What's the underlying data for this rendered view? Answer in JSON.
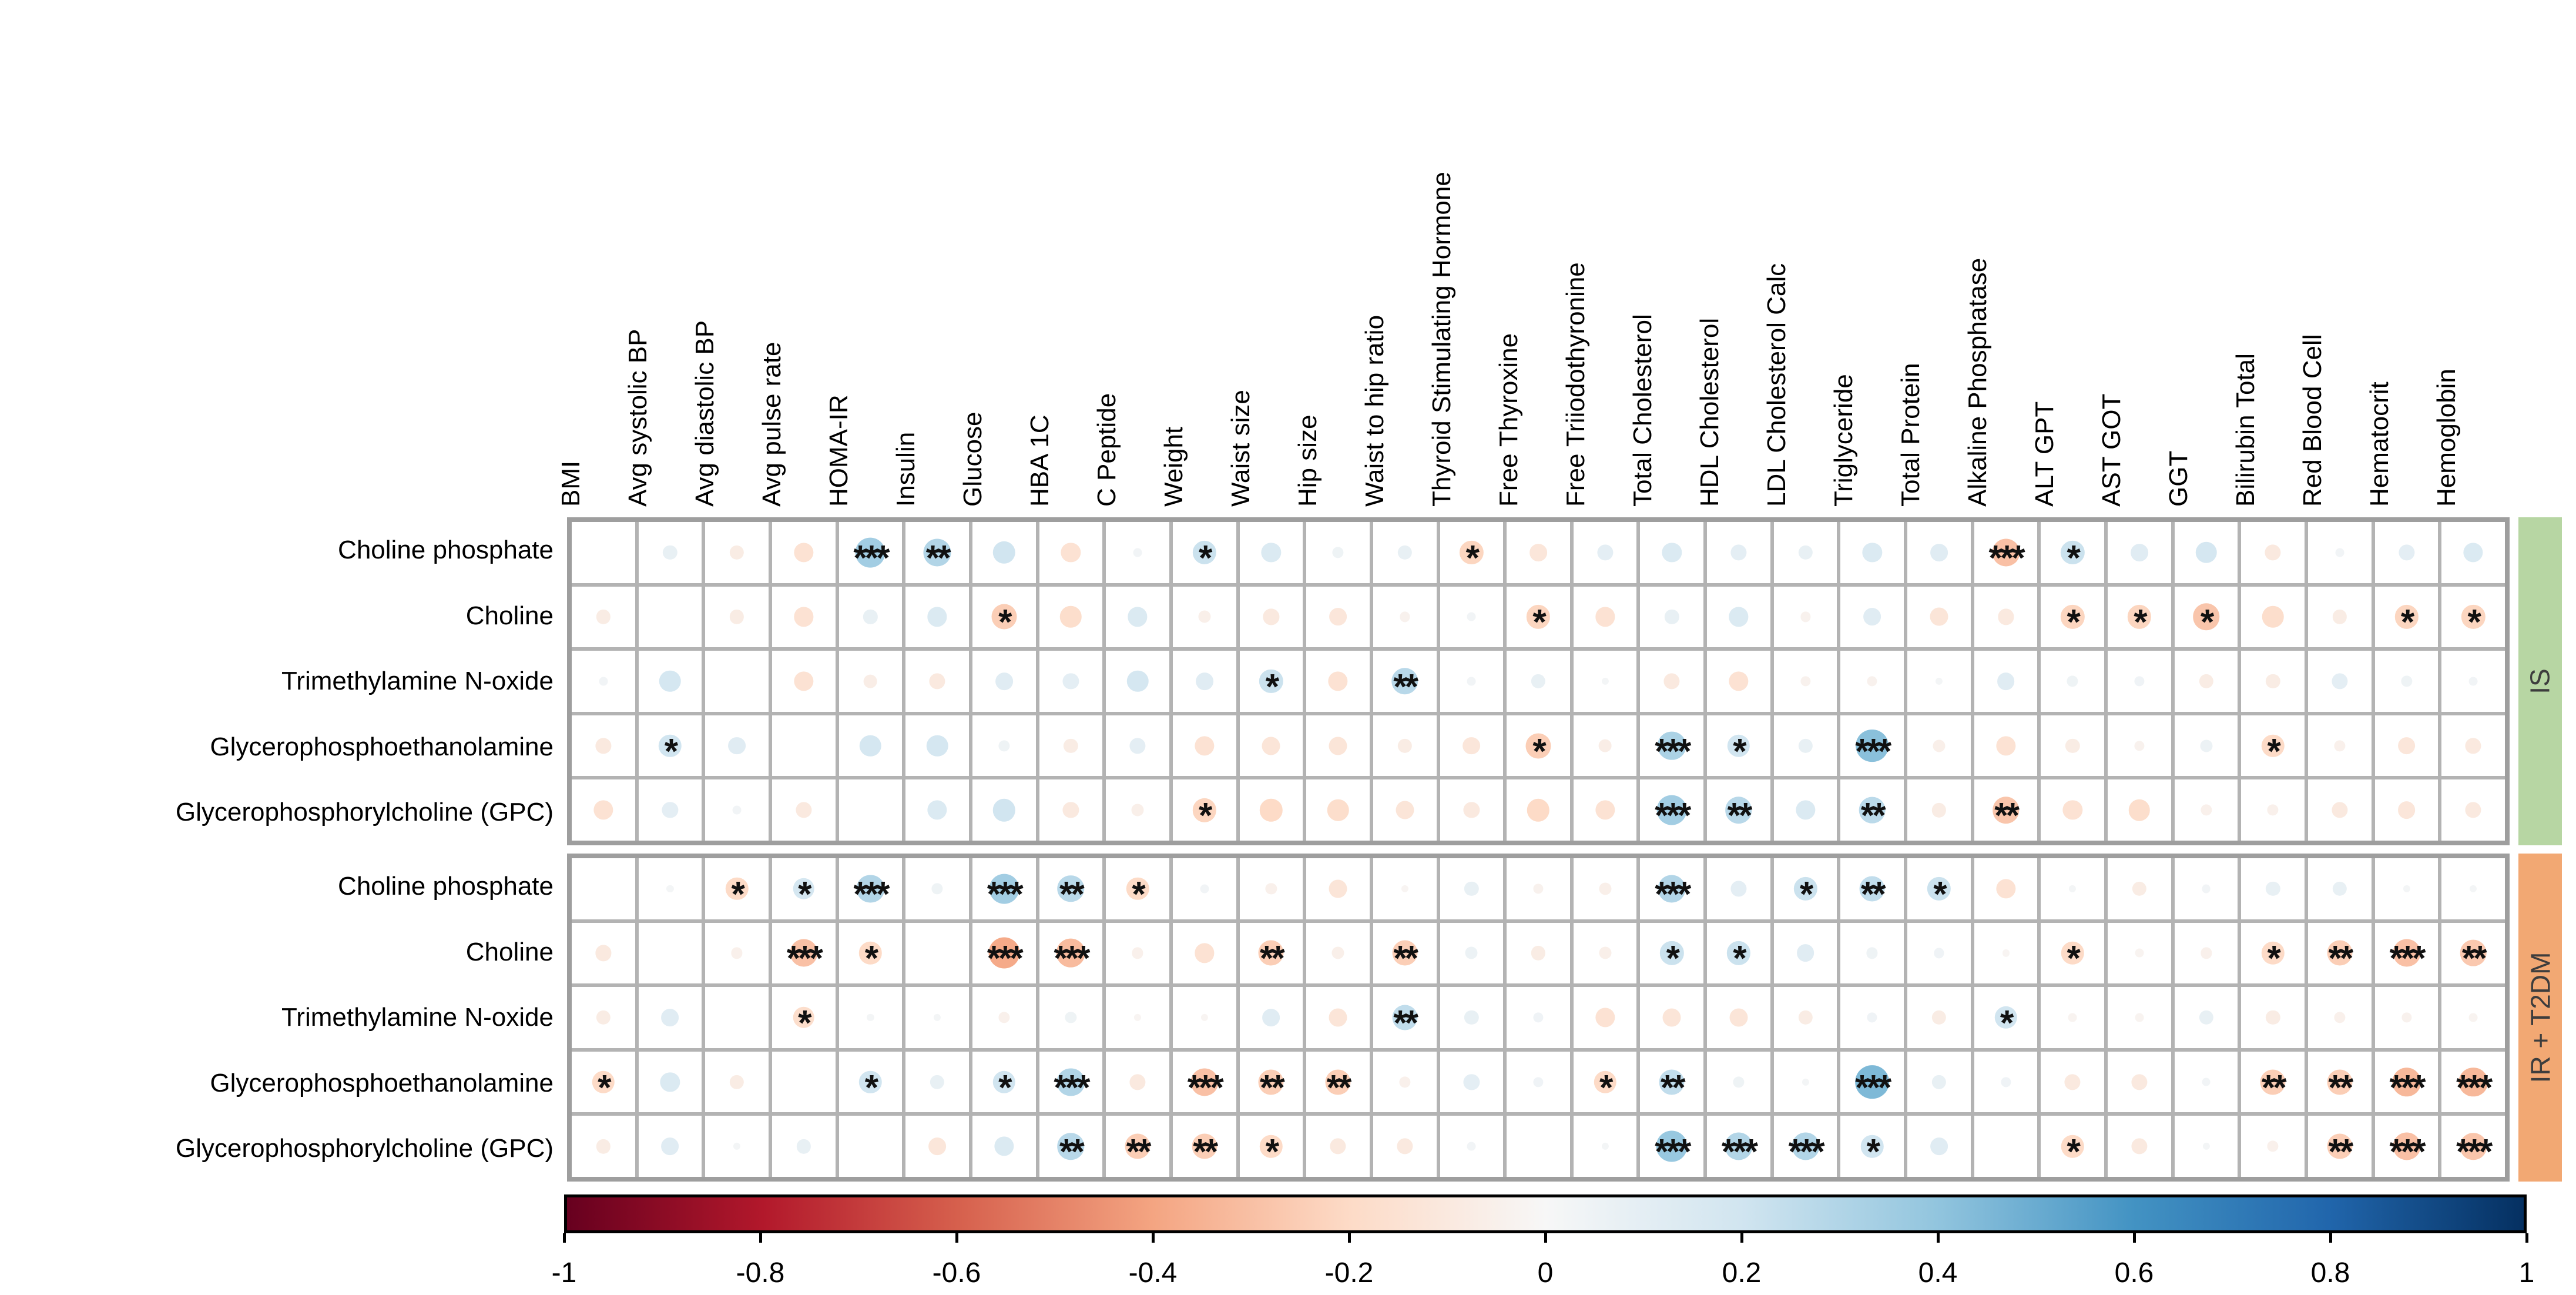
{
  "figure": {
    "strips": [
      {
        "label": "IS",
        "color": "#b7d6a3"
      },
      {
        "label": "IR + T2DM",
        "color": "#f2a873"
      }
    ],
    "grid_line_color": "#b3b3b3",
    "grid_border_color": "#9e9e9e"
  },
  "chart_data": {
    "type": "heatmap",
    "title": "",
    "xlabel": "",
    "ylabel": "",
    "legend_position": "bottom",
    "value_range": [
      -1,
      1
    ],
    "columns": [
      "BMI",
      "Avg systolic BP",
      "Avg diastolic BP",
      "Avg pulse rate",
      "HOMA-IR",
      "Insulin",
      "Glucose",
      "HBA 1C",
      "C Peptide",
      "Weight",
      "Waist size",
      "Hip size",
      "Waist to hip ratio",
      "Thyroid Stimulating Hormone",
      "Free Thyroxine",
      "Free Triiodothyronine",
      "Total Cholesterol",
      "HDL Cholesterol",
      "LDL Cholesterol Calc",
      "Triglyceride",
      "Total Protein",
      "Alkaline Phosphatase",
      "ALT GPT",
      "AST GOT",
      "GGT",
      "Bilirubin Total",
      "Red Blood Cell",
      "Hematocrit",
      "Hemoglobin"
    ],
    "groups": [
      {
        "name": "IS",
        "rows": [
          {
            "name": "Choline phosphate",
            "values": [
              0,
              0.08,
              -0.08,
              -0.15,
              0.35,
              0.3,
              0.2,
              -0.15,
              0.03,
              0.22,
              0.15,
              0.05,
              0.08,
              -0.22,
              -0.12,
              0.1,
              0.15,
              0.1,
              0.08,
              0.15,
              0.12,
              -0.3,
              0.22,
              0.12,
              0.18,
              -0.1,
              0.03,
              0.1,
              0.15
            ],
            "sig": [
              "",
              "",
              "",
              "",
              "***",
              "**",
              "",
              "",
              "",
              "*",
              "",
              "",
              "",
              "*",
              "",
              "",
              "",
              "",
              "",
              "",
              "",
              "***",
              "*",
              "",
              "",
              "",
              "",
              "",
              ""
            ]
          },
          {
            "name": "Choline",
            "values": [
              -0.08,
              0,
              -0.08,
              -0.15,
              0.08,
              0.15,
              -0.25,
              -0.18,
              0.15,
              -0.06,
              -0.1,
              -0.12,
              -0.04,
              0.03,
              -0.22,
              -0.15,
              0.08,
              0.15,
              -0.04,
              0.12,
              -0.13,
              -0.1,
              -0.22,
              -0.22,
              -0.28,
              -0.18,
              -0.08,
              -0.22,
              -0.22
            ],
            "sig": [
              "",
              "",
              "",
              "",
              "",
              "",
              "*",
              "",
              "",
              "",
              "",
              "",
              "",
              "",
              "*",
              "",
              "",
              "",
              "",
              "",
              "",
              "",
              "*",
              "*",
              "*",
              "",
              "",
              "*",
              "*"
            ]
          },
          {
            "name": "Trimethylamine N-oxide",
            "values": [
              0.03,
              0.18,
              0,
              -0.15,
              -0.07,
              -0.1,
              0.12,
              0.1,
              0.18,
              0.12,
              0.22,
              -0.15,
              0.28,
              0.03,
              0.08,
              0.02,
              -0.1,
              -0.15,
              -0.04,
              -0.04,
              0.02,
              0.12,
              0.05,
              0.04,
              -0.08,
              -0.08,
              0.1,
              0.05,
              0.03
            ],
            "sig": [
              "",
              "",
              "",
              "",
              "",
              "",
              "",
              "",
              "",
              "",
              "*",
              "",
              "**",
              "",
              "",
              "",
              "",
              "",
              "",
              "",
              "",
              "",
              "",
              "",
              "",
              "",
              "",
              "",
              ""
            ]
          },
          {
            "name": "Glycerophosphoethanolamine",
            "values": [
              -0.1,
              0.2,
              0.12,
              0,
              0.18,
              0.18,
              0.05,
              -0.08,
              0.1,
              -0.15,
              -0.13,
              -0.13,
              -0.08,
              -0.12,
              -0.25,
              -0.07,
              0.32,
              0.2,
              0.08,
              0.42,
              -0.06,
              -0.15,
              -0.08,
              -0.04,
              0.06,
              -0.2,
              -0.05,
              -0.12,
              -0.1
            ],
            "sig": [
              "",
              "*",
              "",
              "",
              "",
              "",
              "",
              "",
              "",
              "",
              "",
              "",
              "",
              "",
              "*",
              "",
              "***",
              "*",
              "",
              "***",
              "",
              "",
              "",
              "",
              "",
              "*",
              "",
              "",
              ""
            ]
          },
          {
            "name": "Glycerophosphorylcholine (GPC)",
            "values": [
              -0.15,
              0.1,
              0.03,
              -0.1,
              0,
              0.15,
              0.2,
              -0.1,
              -0.06,
              -0.22,
              -0.2,
              -0.18,
              -0.13,
              -0.1,
              -0.2,
              -0.15,
              0.35,
              0.28,
              0.15,
              0.27,
              -0.08,
              -0.28,
              -0.15,
              -0.18,
              -0.05,
              -0.05,
              -0.1,
              -0.12,
              -0.1
            ],
            "sig": [
              "",
              "",
              "",
              "",
              "",
              "",
              "",
              "",
              "",
              "*",
              "",
              "",
              "",
              "",
              "",
              "",
              "***",
              "**",
              "",
              "**",
              "",
              "**",
              "",
              "",
              "",
              "",
              "",
              "",
              ""
            ]
          }
        ]
      },
      {
        "name": "IR + T2DM",
        "rows": [
          {
            "name": "Choline phosphate",
            "values": [
              0,
              0.02,
              -0.2,
              0.18,
              0.3,
              0.05,
              0.35,
              0.28,
              -0.2,
              0.03,
              -0.05,
              -0.13,
              -0.02,
              0.08,
              -0.04,
              -0.06,
              0.3,
              0.1,
              0.22,
              0.25,
              0.22,
              -0.15,
              0.02,
              -0.08,
              0.03,
              0.08,
              0.08,
              0.02,
              0.02
            ],
            "sig": [
              "",
              "",
              "*",
              "*",
              "***",
              "",
              "***",
              "**",
              "*",
              "",
              "",
              "",
              "",
              "",
              "",
              "",
              "***",
              "",
              "*",
              "**",
              "*",
              "",
              "",
              "",
              "",
              "",
              "",
              "",
              ""
            ]
          },
          {
            "name": "Choline",
            "values": [
              -0.1,
              0,
              -0.05,
              -0.3,
              -0.2,
              0,
              -0.38,
              -0.32,
              -0.05,
              -0.15,
              -0.25,
              -0.06,
              -0.25,
              0.06,
              -0.08,
              -0.06,
              0.22,
              0.22,
              0.12,
              0.05,
              0.04,
              -0.02,
              -0.2,
              -0.03,
              -0.05,
              -0.2,
              -0.25,
              -0.3,
              -0.27
            ],
            "sig": [
              "",
              "",
              "",
              "***",
              "*",
              "",
              "***",
              "***",
              "",
              "",
              "**",
              "",
              "**",
              "",
              "",
              "",
              "*",
              "*",
              "",
              "",
              "",
              "",
              "*",
              "",
              "",
              "*",
              "**",
              "***",
              "**"
            ]
          },
          {
            "name": "Trimethylamine N-oxide",
            "values": [
              -0.08,
              0.12,
              0,
              -0.18,
              0.02,
              0.02,
              -0.05,
              0.05,
              -0.02,
              -0.02,
              0.12,
              -0.13,
              0.25,
              0.08,
              0.04,
              -0.15,
              -0.13,
              -0.13,
              -0.08,
              0.04,
              -0.08,
              0.2,
              -0.03,
              -0.03,
              0.08,
              -0.08,
              -0.05,
              -0.04,
              -0.03
            ],
            "sig": [
              "",
              "",
              "",
              "*",
              "",
              "",
              "",
              "",
              "",
              "",
              "",
              "",
              "**",
              "",
              "",
              "",
              "",
              "",
              "",
              "",
              "",
              "*",
              "",
              "",
              "",
              "",
              "",
              "",
              ""
            ]
          },
          {
            "name": "Glycerophosphoethanolamine",
            "values": [
              -0.2,
              0.15,
              -0.08,
              0,
              0.2,
              0.08,
              0.2,
              0.3,
              -0.1,
              -0.3,
              -0.25,
              -0.25,
              -0.05,
              0.1,
              0.04,
              -0.2,
              0.25,
              0.05,
              0.02,
              0.45,
              0.08,
              0.04,
              -0.1,
              -0.1,
              0.03,
              -0.25,
              -0.25,
              -0.33,
              -0.33
            ],
            "sig": [
              "*",
              "",
              "",
              "",
              "*",
              "",
              "*",
              "***",
              "",
              "***",
              "**",
              "**",
              "",
              "",
              "",
              "*",
              "**",
              "",
              "",
              "***",
              "",
              "",
              "",
              "",
              "",
              "**",
              "**",
              "***",
              "***"
            ]
          },
          {
            "name": "Glycerophosphorylcholine (GPC)",
            "values": [
              -0.08,
              0.12,
              0.02,
              0.08,
              0,
              -0.12,
              0.15,
              0.28,
              -0.25,
              -0.25,
              -0.2,
              -0.1,
              -0.1,
              0.03,
              0,
              0.02,
              0.38,
              0.3,
              0.3,
              0.2,
              0.12,
              0,
              -0.2,
              -0.1,
              0.02,
              -0.05,
              -0.25,
              -0.3,
              -0.28
            ],
            "sig": [
              "",
              "",
              "",
              "",
              "",
              "",
              "",
              "**",
              "**",
              "**",
              "*",
              "",
              "",
              "",
              "",
              "",
              "***",
              "***",
              "***",
              "*",
              "",
              "",
              "*",
              "",
              "",
              "",
              "**",
              "***",
              "***"
            ]
          }
        ]
      }
    ],
    "colorbar": {
      "ticks": [
        "-1",
        "-0.8",
        "-0.6",
        "-0.4",
        "-0.2",
        "0",
        "0.2",
        "0.4",
        "0.6",
        "0.8",
        "1"
      ],
      "min": -1,
      "max": 1,
      "palette_stops": [
        {
          "v": -1.0,
          "c": "#67001f"
        },
        {
          "v": -0.8,
          "c": "#b2182b"
        },
        {
          "v": -0.6,
          "c": "#d6604d"
        },
        {
          "v": -0.4,
          "c": "#f4a582"
        },
        {
          "v": -0.2,
          "c": "#fddbc7"
        },
        {
          "v": 0.0,
          "c": "#f7f7f7"
        },
        {
          "v": 0.2,
          "c": "#d1e5f0"
        },
        {
          "v": 0.4,
          "c": "#92c5de"
        },
        {
          "v": 0.6,
          "c": "#4393c3"
        },
        {
          "v": 0.8,
          "c": "#2166ac"
        },
        {
          "v": 1.0,
          "c": "#053061"
        }
      ]
    }
  }
}
